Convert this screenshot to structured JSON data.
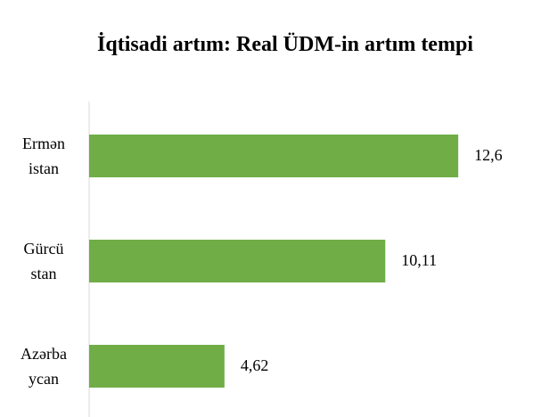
{
  "chart_data": {
    "type": "bar",
    "orientation": "horizontal",
    "title": "İqtisadi artım: Real ÜDM-in artım tempi",
    "categories": [
      "Ermən\nistan",
      "Gürcü\nstan",
      "Azərba\nycan"
    ],
    "values": [
      12.6,
      10.11,
      4.62
    ],
    "value_labels": [
      "12,6",
      "10,11",
      "4,62"
    ],
    "color": "#70ad47",
    "xlim": [
      0,
      15
    ]
  }
}
